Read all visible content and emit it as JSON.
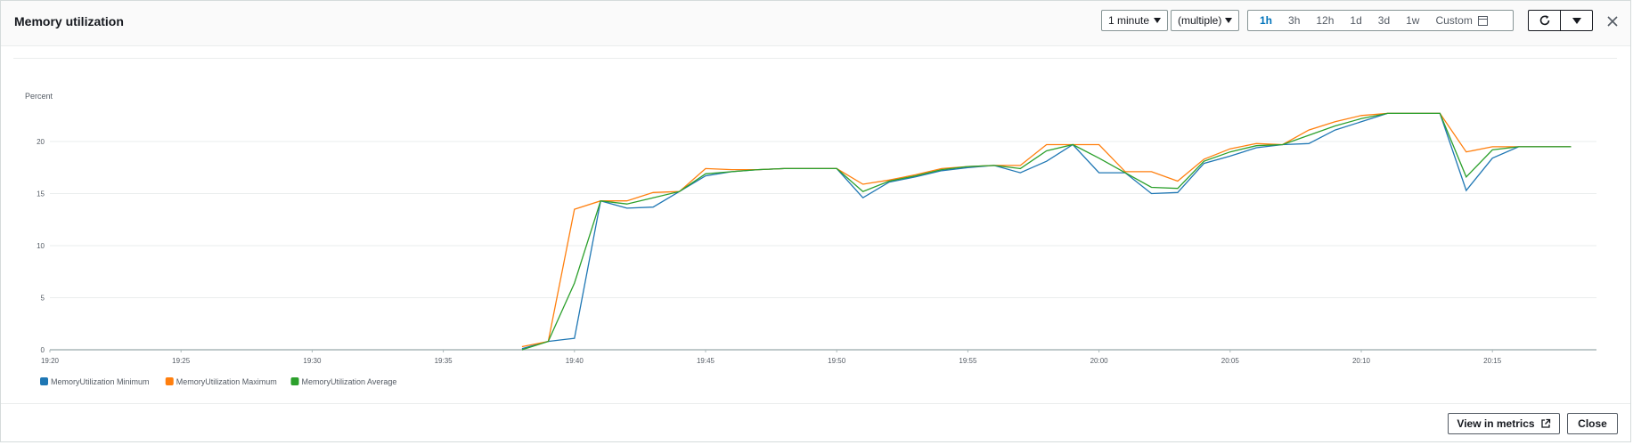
{
  "header": {
    "title": "Memory utilization",
    "period": "1 minute",
    "statistic": "(multiple)",
    "ranges": [
      "1h",
      "3h",
      "12h",
      "1d",
      "3d",
      "1w"
    ],
    "active_range": "1h",
    "custom_label": "Custom"
  },
  "footer": {
    "view_in_metrics": "View in metrics",
    "close": "Close"
  },
  "colors": {
    "minimum": "#1f77b4",
    "maximum": "#ff7f0e",
    "average": "#2ca02c",
    "active_link": "#0073bb"
  },
  "chart_data": {
    "type": "line",
    "ylabel": "Percent",
    "ylim": [
      0,
      25
    ],
    "yticks": [
      0,
      5,
      10,
      15,
      20
    ],
    "xticks": [
      "19:20",
      "19:25",
      "19:30",
      "19:35",
      "19:40",
      "19:45",
      "19:50",
      "19:55",
      "20:00",
      "20:05",
      "20:10",
      "20:15"
    ],
    "xlim": [
      "19:20",
      "20:19"
    ],
    "grid": true,
    "legend_position": "bottom-left",
    "x": [
      "19:38",
      "19:39",
      "19:40",
      "19:41",
      "19:42",
      "19:43",
      "19:44",
      "19:45",
      "19:46",
      "19:47",
      "19:48",
      "19:49",
      "19:50",
      "19:51",
      "19:52",
      "19:53",
      "19:54",
      "19:55",
      "19:56",
      "19:57",
      "19:58",
      "19:59",
      "20:00",
      "20:01",
      "20:02",
      "20:03",
      "20:04",
      "20:05",
      "20:06",
      "20:07",
      "20:08",
      "20:09",
      "20:10",
      "20:11",
      "20:12",
      "20:13",
      "20:14",
      "20:15",
      "20:16",
      "20:17",
      "20:18"
    ],
    "series": [
      {
        "name": "MemoryUtilization Minimum",
        "color": "#1f77b4",
        "values": [
          0.1,
          0.8,
          1.1,
          14.3,
          13.6,
          13.7,
          15.2,
          16.7,
          17.1,
          17.3,
          17.4,
          17.4,
          17.4,
          14.6,
          16.1,
          16.6,
          17.2,
          17.5,
          17.7,
          17.0,
          18.1,
          19.7,
          17.0,
          17.0,
          15.0,
          15.1,
          17.9,
          18.6,
          19.4,
          19.7,
          19.8,
          21.1,
          21.9,
          22.7,
          22.7,
          22.7,
          15.3,
          18.4,
          19.5,
          19.5,
          19.5
        ]
      },
      {
        "name": "MemoryUtilization Maximum",
        "color": "#ff7f0e",
        "values": [
          0.3,
          0.8,
          13.5,
          14.3,
          14.3,
          15.1,
          15.2,
          17.4,
          17.3,
          17.3,
          17.4,
          17.4,
          17.4,
          15.9,
          16.3,
          16.8,
          17.4,
          17.6,
          17.7,
          17.7,
          19.7,
          19.7,
          19.7,
          17.1,
          17.1,
          16.2,
          18.3,
          19.3,
          19.8,
          19.7,
          21.1,
          21.9,
          22.5,
          22.7,
          22.7,
          22.7,
          19.0,
          19.5,
          19.5,
          19.5,
          19.5
        ]
      },
      {
        "name": "MemoryUtilization Average",
        "color": "#2ca02c",
        "values": [
          0.0,
          0.8,
          6.4,
          14.3,
          14.0,
          14.6,
          15.2,
          16.9,
          17.1,
          17.3,
          17.4,
          17.4,
          17.4,
          15.2,
          16.2,
          16.7,
          17.3,
          17.6,
          17.7,
          17.4,
          19.1,
          19.7,
          18.4,
          17.0,
          15.6,
          15.5,
          18.1,
          19.0,
          19.6,
          19.7,
          20.6,
          21.5,
          22.2,
          22.7,
          22.7,
          22.7,
          16.6,
          19.2,
          19.5,
          19.5,
          19.5
        ]
      }
    ]
  }
}
